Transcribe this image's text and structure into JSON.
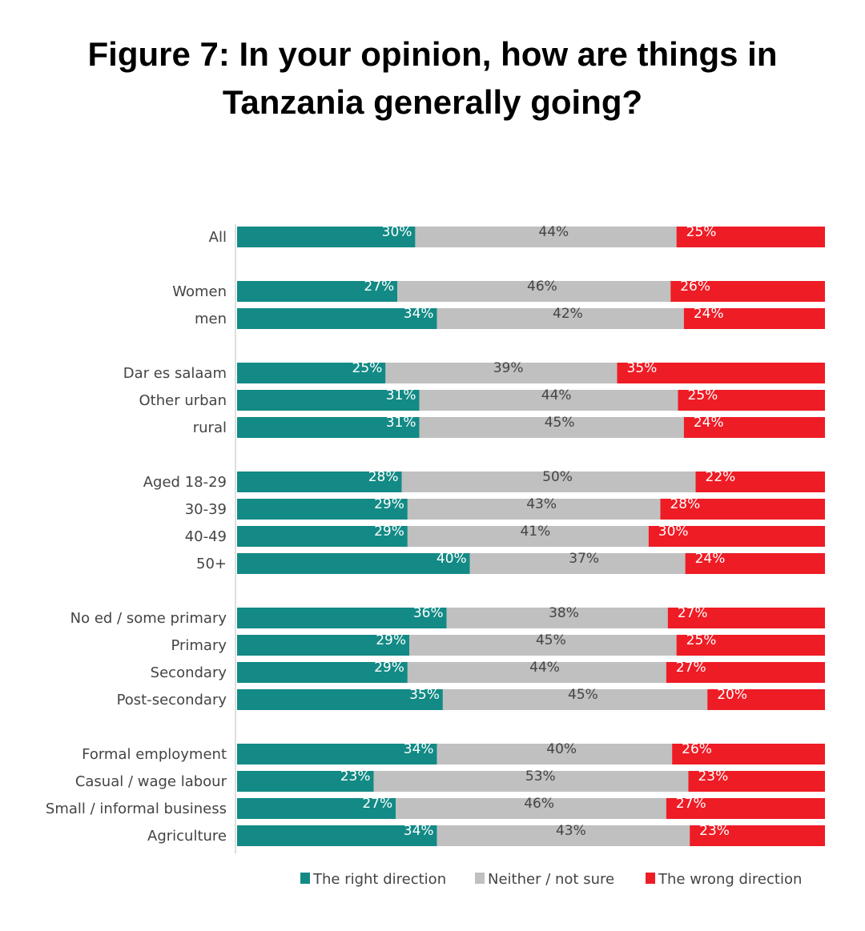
{
  "title": "Figure 7: In your opinion, how are things in Tanzania generally going?",
  "chart_data": {
    "type": "bar",
    "orientation": "horizontal",
    "stacked": true,
    "title": "Figure 7: In your opinion, how are things in Tanzania generally going?",
    "xlim": [
      0,
      100
    ],
    "legend_position": "bottom",
    "categories": [
      "All",
      "Women",
      "men",
      "Dar es salaam",
      "Other urban",
      "rural",
      "Aged 18-29",
      "30-39",
      "40-49",
      "50+",
      "No ed / some primary",
      "Primary",
      "Secondary",
      "Post-secondary",
      "Formal employment",
      "Casual / wage labour",
      "Small / informal business",
      "Agriculture"
    ],
    "groups": [
      [
        0
      ],
      [
        1,
        2
      ],
      [
        3,
        4,
        5
      ],
      [
        6,
        7,
        8,
        9
      ],
      [
        10,
        11,
        12,
        13
      ],
      [
        14,
        15,
        16,
        17
      ]
    ],
    "series": [
      {
        "name": "The right direction",
        "color": "#138a85",
        "values": [
          30,
          27,
          34,
          25,
          31,
          31,
          28,
          29,
          29,
          40,
          36,
          29,
          29,
          35,
          34,
          23,
          27,
          34
        ]
      },
      {
        "name": "Neither / not sure",
        "color": "#c0c0c0",
        "values": [
          44,
          46,
          42,
          39,
          44,
          45,
          50,
          43,
          41,
          37,
          38,
          45,
          44,
          45,
          40,
          53,
          46,
          43
        ]
      },
      {
        "name": "The wrong direction",
        "color": "#ee1c25",
        "values": [
          25,
          26,
          24,
          35,
          25,
          24,
          22,
          28,
          30,
          24,
          27,
          25,
          27,
          20,
          26,
          23,
          27,
          23
        ]
      }
    ],
    "label_suffix": "%"
  }
}
